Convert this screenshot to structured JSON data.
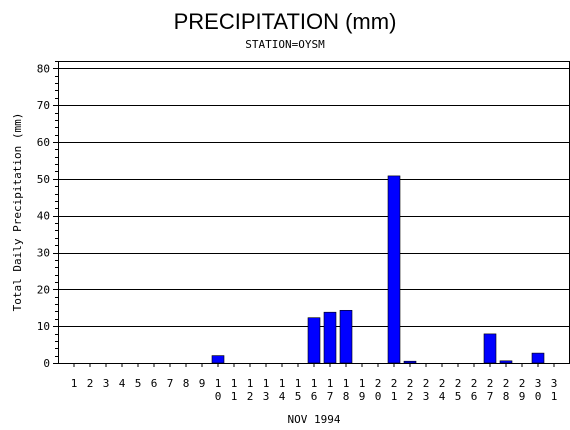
{
  "chart_data": {
    "type": "bar",
    "title": "PRECIPITATION (mm)",
    "subtitle": "STATION=OYSM",
    "xlabel": "NOV 1994",
    "ylabel": "Total Daily Precipitation (mm)",
    "ylim": [
      0,
      82
    ],
    "yticks": [
      0,
      10,
      20,
      30,
      40,
      50,
      60,
      70,
      80
    ],
    "grid": true,
    "categories": [
      "1",
      "2",
      "3",
      "4",
      "5",
      "6",
      "7",
      "8",
      "9",
      "10",
      "11",
      "12",
      "13",
      "14",
      "15",
      "16",
      "17",
      "18",
      "19",
      "20",
      "21",
      "22",
      "23",
      "24",
      "25",
      "26",
      "27",
      "28",
      "29",
      "30",
      "31"
    ],
    "values": [
      0,
      0,
      0,
      0,
      0,
      0,
      0,
      0,
      0,
      2.0,
      0,
      0,
      0,
      0,
      0,
      12.3,
      13.8,
      14.3,
      0,
      0,
      50.8,
      0.5,
      0,
      0,
      0,
      0,
      7.9,
      0.6,
      0,
      2.7,
      0
    ],
    "bar_color": "#0000ff"
  }
}
